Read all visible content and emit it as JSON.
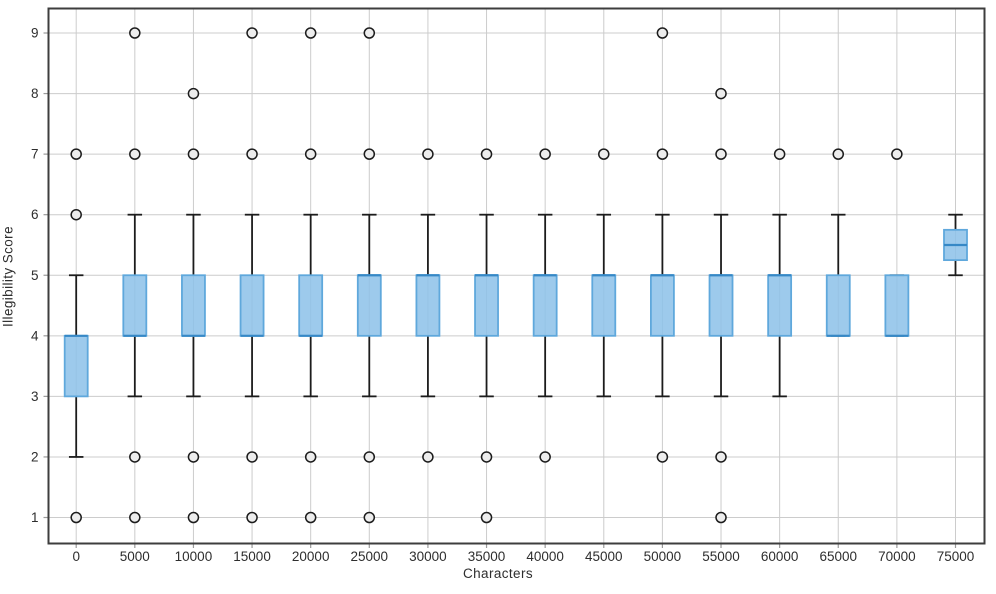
{
  "chart_data": {
    "type": "boxplot",
    "title": "",
    "xlabel": "Characters",
    "ylabel": "Illegibility Score",
    "x_tick_labels": [
      "0",
      "5000",
      "10000",
      "15000",
      "20000",
      "25000",
      "30000",
      "35000",
      "40000",
      "45000",
      "50000",
      "55000",
      "60000",
      "65000",
      "70000",
      "75000"
    ],
    "y_ticks": [
      1,
      2,
      3,
      4,
      5,
      6,
      7,
      8,
      9
    ],
    "ylim": [
      0.55,
      9.45
    ],
    "grid": true,
    "legend": "none",
    "colors": {
      "box_fill": "#8cc1e9",
      "box_edge": "#5fa8dc",
      "median": "#3688c6",
      "whisker": "#1c1c1c",
      "outlier_fill": "#ededed",
      "outlier_edge": "#1c1c1c",
      "grid": "#cccccc",
      "spine": "#3d3d3d",
      "tick": "#9a9a9a",
      "text": "#2e2e2e"
    },
    "boxes": [
      {
        "x": 0,
        "q1": 3,
        "q3": 4,
        "median": 4,
        "whisker_low": 2,
        "whisker_high": 5,
        "outliers": [
          1,
          6,
          7
        ]
      },
      {
        "x": 5000,
        "q1": 4,
        "q3": 5,
        "median": 4,
        "whisker_low": 3,
        "whisker_high": 6,
        "outliers": [
          1,
          2,
          7,
          9
        ]
      },
      {
        "x": 10000,
        "q1": 4,
        "q3": 5,
        "median": 4,
        "whisker_low": 3,
        "whisker_high": 6,
        "outliers": [
          1,
          2,
          7,
          8
        ]
      },
      {
        "x": 15000,
        "q1": 4,
        "q3": 5,
        "median": 4,
        "whisker_low": 3,
        "whisker_high": 6,
        "outliers": [
          1,
          2,
          7,
          9
        ]
      },
      {
        "x": 20000,
        "q1": 4,
        "q3": 5,
        "median": 4,
        "whisker_low": 3,
        "whisker_high": 6,
        "outliers": [
          1,
          2,
          7,
          9
        ]
      },
      {
        "x": 25000,
        "q1": 4,
        "q3": 5,
        "median": 5,
        "whisker_low": 3,
        "whisker_high": 6,
        "outliers": [
          1,
          2,
          7,
          9
        ]
      },
      {
        "x": 30000,
        "q1": 4,
        "q3": 5,
        "median": 5,
        "whisker_low": 3,
        "whisker_high": 6,
        "outliers": [
          2,
          7
        ]
      },
      {
        "x": 35000,
        "q1": 4,
        "q3": 5,
        "median": 5,
        "whisker_low": 3,
        "whisker_high": 6,
        "outliers": [
          1,
          2,
          7
        ]
      },
      {
        "x": 40000,
        "q1": 4,
        "q3": 5,
        "median": 5,
        "whisker_low": 3,
        "whisker_high": 6,
        "outliers": [
          2,
          7
        ]
      },
      {
        "x": 45000,
        "q1": 4,
        "q3": 5,
        "median": 5,
        "whisker_low": 3,
        "whisker_high": 6,
        "outliers": [
          7
        ]
      },
      {
        "x": 50000,
        "q1": 4,
        "q3": 5,
        "median": 5,
        "whisker_low": 3,
        "whisker_high": 6,
        "outliers": [
          2,
          7,
          9
        ]
      },
      {
        "x": 55000,
        "q1": 4,
        "q3": 5,
        "median": 5,
        "whisker_low": 3,
        "whisker_high": 6,
        "outliers": [
          1,
          2,
          7,
          8
        ]
      },
      {
        "x": 60000,
        "q1": 4,
        "q3": 5,
        "median": 5,
        "whisker_low": 3,
        "whisker_high": 6,
        "outliers": [
          7
        ]
      },
      {
        "x": 65000,
        "q1": 4,
        "q3": 5,
        "median": 4,
        "whisker_low": 4,
        "whisker_high": 6,
        "outliers": [
          7
        ]
      },
      {
        "x": 70000,
        "q1": 4,
        "q3": 5,
        "median": 4,
        "whisker_low": 4,
        "whisker_high": 5,
        "outliers": [
          7
        ]
      },
      {
        "x": 75000,
        "q1": 5.25,
        "q3": 5.75,
        "median": 5.5,
        "whisker_low": 5,
        "whisker_high": 6,
        "outliers": []
      }
    ]
  }
}
